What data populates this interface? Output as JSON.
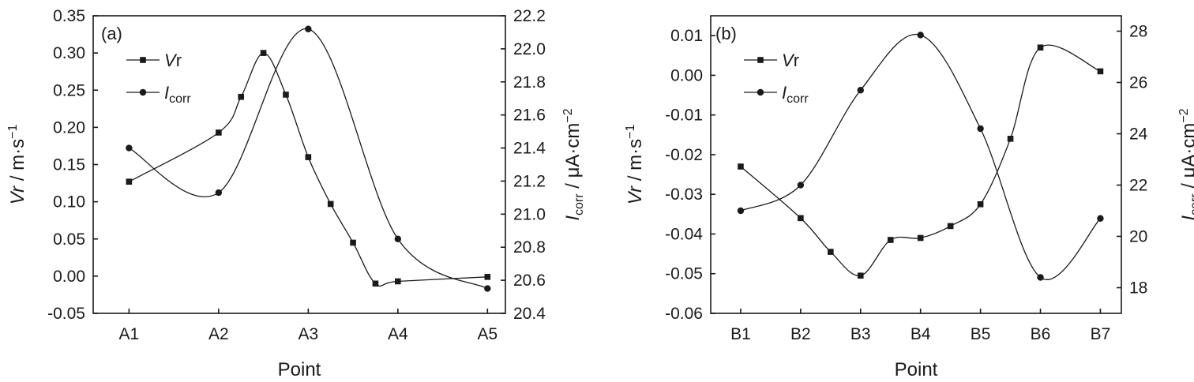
{
  "chart_data": [
    {
      "type": "line",
      "panel_label": "(a)",
      "xlabel": "Point",
      "ylabel_left": {
        "main": "Vr",
        "rest": " / m·s",
        "sup": "−1"
      },
      "ylabel_right": {
        "main": "I",
        "sub": "corr",
        "rest": " / μA·cm",
        "sup": "−2"
      },
      "categories": [
        "A1",
        "A2",
        "A3",
        "A4",
        "A5"
      ],
      "x_range": [
        0.6,
        5.2
      ],
      "ylim_left": [
        -0.05,
        0.35
      ],
      "ylim_right": [
        20.4,
        22.2
      ],
      "yticks_left": [
        "-0.05",
        "0.00",
        "0.05",
        "0.10",
        "0.15",
        "0.20",
        "0.25",
        "0.30",
        "0.35"
      ],
      "yticks_right": [
        "20.4",
        "20.6",
        "20.8",
        "21.0",
        "21.2",
        "21.4",
        "21.6",
        "21.8",
        "22.0",
        "22.2"
      ],
      "legend_position": "top-left",
      "series": [
        {
          "name": "Vr",
          "axis": "left",
          "marker": "square",
          "points": [
            [
              1,
              0.127
            ],
            [
              2,
              0.193
            ],
            [
              2.25,
              0.241
            ],
            [
              2.5,
              0.3
            ],
            [
              2.75,
              0.244
            ],
            [
              3,
              0.16
            ],
            [
              3.25,
              0.097
            ],
            [
              3.5,
              0.045
            ],
            [
              3.75,
              -0.01
            ],
            [
              4,
              -0.007
            ],
            [
              5,
              -0.001
            ]
          ]
        },
        {
          "name": "Icorr",
          "axis": "right",
          "marker": "circle",
          "points": [
            [
              1,
              21.4
            ],
            [
              2,
              21.13
            ],
            [
              3,
              22.12
            ],
            [
              4,
              20.85
            ],
            [
              5,
              20.55
            ]
          ]
        }
      ]
    },
    {
      "type": "line",
      "panel_label": "(b)",
      "xlabel": "Point",
      "ylabel_left": {
        "main": "Vr",
        "rest": " / m·s",
        "sup": "−1"
      },
      "ylabel_right": {
        "main": "I",
        "sub": "corr",
        "rest": " / μA·cm",
        "sup": "−2"
      },
      "categories": [
        "B1",
        "B2",
        "B3",
        "B4",
        "B5",
        "B6",
        "B7"
      ],
      "x_range": [
        0.5,
        7.35
      ],
      "ylim_left": [
        -0.06,
        0.015
      ],
      "ylim_right": [
        17,
        28.6
      ],
      "yticks_left": [
        "-0.06",
        "-0.05",
        "-0.04",
        "-0.03",
        "-0.02",
        "-0.01",
        "0.00",
        "0.01"
      ],
      "yticks_right": [
        "18",
        "20",
        "22",
        "24",
        "26",
        "28"
      ],
      "legend_position": "top-left",
      "series": [
        {
          "name": "Vr",
          "axis": "left",
          "marker": "square",
          "points": [
            [
              1,
              -0.023
            ],
            [
              2,
              -0.036
            ],
            [
              2.5,
              -0.0445
            ],
            [
              3,
              -0.0505
            ],
            [
              3.5,
              -0.0415
            ],
            [
              4,
              -0.041
            ],
            [
              4.5,
              -0.038
            ],
            [
              5,
              -0.0325
            ],
            [
              5.5,
              -0.016
            ],
            [
              6,
              0.007
            ],
            [
              7,
              0.001
            ]
          ]
        },
        {
          "name": "Icorr",
          "axis": "right",
          "marker": "circle",
          "points": [
            [
              1,
              21.0
            ],
            [
              2,
              22.0
            ],
            [
              3,
              25.7
            ],
            [
              4,
              27.85
            ],
            [
              5,
              24.2
            ],
            [
              6,
              18.4
            ],
            [
              7,
              20.7
            ]
          ]
        }
      ]
    }
  ]
}
